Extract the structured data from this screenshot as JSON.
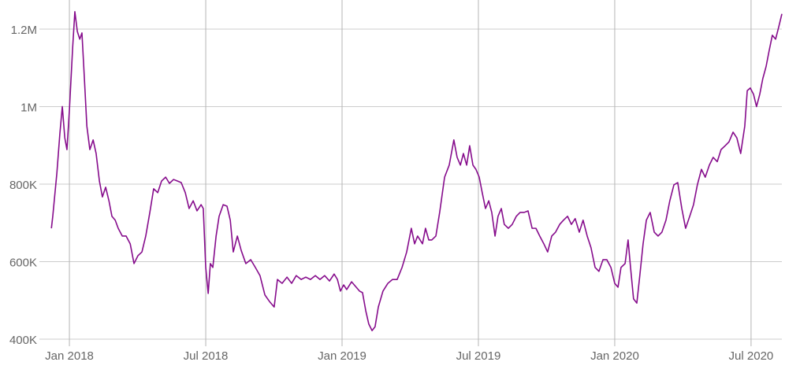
{
  "chart_data": {
    "type": "line",
    "color": "#860c8c",
    "grid": true,
    "xlim": [
      2017.89,
      2020.613
    ],
    "xticks": [
      {
        "value": 2018,
        "label": "Jan 2018"
      },
      {
        "value": 2018.5,
        "label": "Jul 2018"
      },
      {
        "value": 2019,
        "label": "Jan 2019"
      },
      {
        "value": 2019.5,
        "label": "Jul 2019"
      },
      {
        "value": 2020,
        "label": "Jan 2020"
      },
      {
        "value": 2020.5,
        "label": "Jul 2020"
      }
    ],
    "ylim": [
      400000,
      1275000
    ],
    "yticks": [
      {
        "value": 400000,
        "label": "400K"
      },
      {
        "value": 600000,
        "label": "600K"
      },
      {
        "value": 800000,
        "label": "800K"
      },
      {
        "value": 1000000,
        "label": "1M"
      },
      {
        "value": 1200000,
        "label": "1.2M"
      }
    ],
    "x": [
      2017.934,
      2017.939,
      2017.954,
      2017.965,
      2017.974,
      2017.983,
      2017.991,
      2018.0,
      2018.012,
      2018.02,
      2018.029,
      2018.038,
      2018.046,
      2018.055,
      2018.064,
      2018.075,
      2018.087,
      2018.098,
      2018.11,
      2018.121,
      2018.133,
      2018.145,
      2018.156,
      2018.168,
      2018.179,
      2018.194,
      2018.208,
      2018.223,
      2018.237,
      2018.251,
      2018.266,
      2018.28,
      2018.295,
      2018.309,
      2018.324,
      2018.338,
      2018.353,
      2018.367,
      2018.382,
      2018.396,
      2018.41,
      2018.425,
      2018.439,
      2018.454,
      2018.468,
      2018.483,
      2018.491,
      2018.5,
      2018.509,
      2018.517,
      2018.526,
      2018.538,
      2018.549,
      2018.564,
      2018.578,
      2018.59,
      2018.601,
      2018.616,
      2018.63,
      2018.647,
      2018.665,
      2018.682,
      2018.699,
      2018.717,
      2018.734,
      2018.751,
      2018.763,
      2018.78,
      2018.798,
      2018.815,
      2018.832,
      2018.85,
      2018.867,
      2018.884,
      2018.902,
      2018.919,
      2018.936,
      2018.954,
      2018.971,
      2018.983,
      2018.994,
      2019.006,
      2019.017,
      2019.035,
      2019.052,
      2019.064,
      2019.075,
      2019.087,
      2019.098,
      2019.11,
      2019.121,
      2019.133,
      2019.15,
      2019.168,
      2019.185,
      2019.202,
      2019.22,
      2019.237,
      2019.254,
      2019.266,
      2019.277,
      2019.295,
      2019.306,
      2019.318,
      2019.329,
      2019.344,
      2019.358,
      2019.376,
      2019.393,
      2019.41,
      2019.422,
      2019.434,
      2019.445,
      2019.457,
      2019.468,
      2019.48,
      2019.491,
      2019.503,
      2019.514,
      2019.526,
      2019.538,
      2019.549,
      2019.561,
      2019.572,
      2019.584,
      2019.595,
      2019.61,
      2019.624,
      2019.639,
      2019.653,
      2019.668,
      2019.682,
      2019.697,
      2019.711,
      2019.725,
      2019.74,
      2019.754,
      2019.769,
      2019.783,
      2019.798,
      2019.812,
      2019.827,
      2019.841,
      2019.855,
      2019.87,
      2019.884,
      2019.899,
      2019.913,
      2019.928,
      2019.942,
      2019.957,
      2019.971,
      2019.986,
      2020.0,
      2020.012,
      2020.023,
      2020.038,
      2020.049,
      2020.058,
      2020.069,
      2020.081,
      2020.092,
      2020.104,
      2020.116,
      2020.13,
      2020.145,
      2020.159,
      2020.173,
      2020.188,
      2020.202,
      2020.217,
      2020.231,
      2020.246,
      2020.26,
      2020.275,
      2020.289,
      2020.303,
      2020.318,
      2020.332,
      2020.347,
      2020.361,
      2020.376,
      2020.39,
      2020.405,
      2020.419,
      2020.434,
      2020.448,
      2020.462,
      2020.477,
      2020.486,
      2020.497,
      2020.509,
      2020.52,
      2020.532,
      2020.543,
      2020.555,
      2020.566,
      2020.578,
      2020.59,
      2020.601,
      2020.613
    ],
    "values": [
      686000,
      717000,
      828000,
      930000,
      1000000,
      920000,
      889000,
      991000,
      1153000,
      1245000,
      1194000,
      1174000,
      1190000,
      1072000,
      950000,
      889000,
      914000,
      879000,
      808000,
      767000,
      792000,
      757000,
      717000,
      707000,
      686000,
      666000,
      666000,
      646000,
      595000,
      615000,
      625000,
      666000,
      727000,
      788000,
      778000,
      808000,
      818000,
      802000,
      812000,
      808000,
      804000,
      778000,
      737000,
      757000,
      731000,
      747000,
      737000,
      585000,
      518000,
      595000,
      585000,
      666000,
      717000,
      747000,
      743000,
      707000,
      625000,
      666000,
      629000,
      595000,
      605000,
      585000,
      564000,
      514000,
      497000,
      483000,
      554000,
      544000,
      560000,
      544000,
      564000,
      554000,
      560000,
      554000,
      564000,
      554000,
      564000,
      550000,
      568000,
      554000,
      524000,
      540000,
      528000,
      548000,
      534000,
      524000,
      520000,
      473000,
      439000,
      422000,
      432000,
      483000,
      524000,
      544000,
      554000,
      554000,
      585000,
      625000,
      686000,
      646000,
      666000,
      646000,
      686000,
      656000,
      656000,
      666000,
      727000,
      818000,
      849000,
      914000,
      869000,
      849000,
      879000,
      849000,
      899000,
      849000,
      838000,
      818000,
      778000,
      737000,
      757000,
      727000,
      666000,
      717000,
      737000,
      696000,
      686000,
      696000,
      717000,
      727000,
      727000,
      731000,
      686000,
      686000,
      666000,
      646000,
      625000,
      666000,
      676000,
      696000,
      707000,
      717000,
      696000,
      711000,
      676000,
      707000,
      666000,
      636000,
      585000,
      575000,
      605000,
      605000,
      585000,
      544000,
      534000,
      585000,
      595000,
      656000,
      585000,
      504000,
      493000,
      564000,
      646000,
      707000,
      727000,
      676000,
      666000,
      676000,
      707000,
      757000,
      798000,
      804000,
      737000,
      686000,
      717000,
      747000,
      798000,
      838000,
      818000,
      849000,
      869000,
      858000,
      889000,
      899000,
      909000,
      934000,
      919000,
      879000,
      950000,
      1041000,
      1048000,
      1032000,
      1000000,
      1032000,
      1072000,
      1103000,
      1143000,
      1184000,
      1174000,
      1204000,
      1239000
    ]
  }
}
